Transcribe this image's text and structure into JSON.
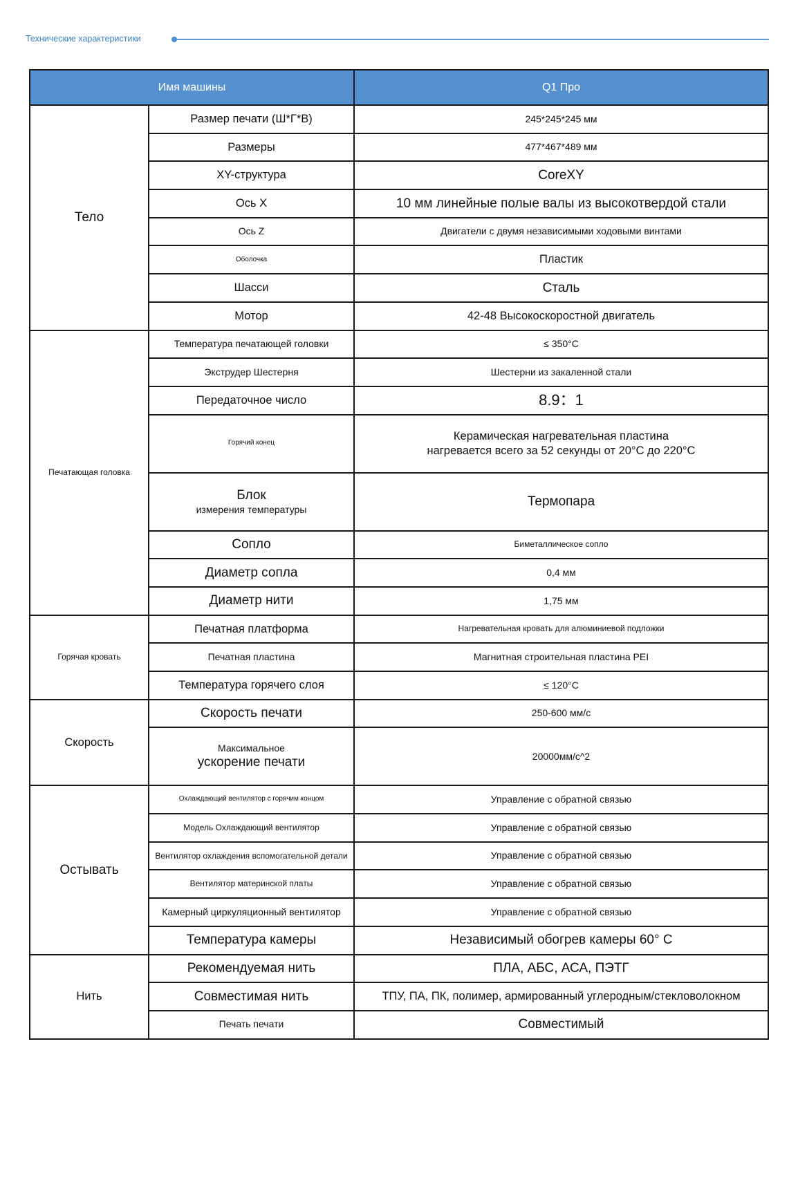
{
  "section_title": "Технические характеристики",
  "header": {
    "col_name": "Имя машины",
    "col_value": "Q1 Про"
  },
  "colors": {
    "accent": "#5590cf",
    "title": "#3b7fc0"
  },
  "groups": [
    {
      "label": "Тело",
      "rows": [
        {
          "param": [
            "Размер печати (Ш*Г*В)"
          ],
          "value": [
            "245*245*245 мм"
          ]
        },
        {
          "param": [
            "Размеры"
          ],
          "value": [
            "477*467*489 мм"
          ]
        },
        {
          "param": [
            "XY-структура"
          ],
          "value": [
            "CoreXY"
          ]
        },
        {
          "param": [
            "Ось X"
          ],
          "value": [
            "10 мм линейные полые валы из высокотвердой стали"
          ]
        },
        {
          "param": [
            "Ось Z"
          ],
          "value": [
            "Двигатели с двумя независимыми ходовыми винтами"
          ]
        },
        {
          "param": [
            "Оболочка"
          ],
          "value": [
            "Пластик"
          ]
        },
        {
          "param": [
            "Шасси"
          ],
          "value": [
            "Сталь"
          ]
        },
        {
          "param": [
            "Мотор"
          ],
          "value": [
            "42-48 Высокоскоростной двигатель"
          ]
        }
      ]
    },
    {
      "label": "Печатающая головка",
      "rows": [
        {
          "param": [
            "Температура печатающей головки"
          ],
          "value": [
            "≤ 350°C"
          ]
        },
        {
          "param": [
            "Экструдер Шестерня"
          ],
          "value": [
            "Шестерни из закаленной стали"
          ]
        },
        {
          "param": [
            "Передаточное число"
          ],
          "value": [
            "8.9：1"
          ]
        },
        {
          "param": [
            "Горячий конец"
          ],
          "value": [
            "Керамическая нагревательная пластина",
            "нагревается всего за 52 секунды от 20°C до 220°C"
          ]
        },
        {
          "param": [
            "Блок",
            "измерения температуры"
          ],
          "value": [
            "Термопара"
          ]
        },
        {
          "param": [
            "Сопло"
          ],
          "value": [
            "Биметаллическое сопло"
          ]
        },
        {
          "param": [
            "Диаметр сопла"
          ],
          "value": [
            "0,4 мм"
          ]
        },
        {
          "param": [
            "Диаметр нити"
          ],
          "value": [
            "1,75 мм"
          ]
        }
      ]
    },
    {
      "label": "Горячая кровать",
      "rows": [
        {
          "param": [
            "Печатная платформа"
          ],
          "value": [
            "Нагревательная кровать для алюминиевой подложки"
          ]
        },
        {
          "param": [
            "Печатная пластина"
          ],
          "value": [
            "Магнитная строительная пластина PEI"
          ]
        },
        {
          "param": [
            "Температура горячего слоя"
          ],
          "value": [
            "≤ 120°C"
          ]
        }
      ]
    },
    {
      "label": "Скорость",
      "rows": [
        {
          "param": [
            "Скорость печати"
          ],
          "value": [
            "250-600 мм/с"
          ]
        },
        {
          "param": [
            "Максимальное",
            "ускорение печати"
          ],
          "value": [
            "20000мм/с^2"
          ]
        }
      ]
    },
    {
      "label": "Остывать",
      "rows": [
        {
          "param": [
            "Охлаждающий вентилятор с горячим концом"
          ],
          "value": [
            "Управление с обратной связью"
          ]
        },
        {
          "param": [
            "Модель Охлаждающий вентилятор"
          ],
          "value": [
            "Управление с обратной связью"
          ]
        },
        {
          "param": [
            "Вентилятор охлаждения вспомогательной детали"
          ],
          "value": [
            "Управление с обратной связью"
          ]
        },
        {
          "param": [
            "Вентилятор материнской платы"
          ],
          "value": [
            "Управление с обратной связью"
          ]
        },
        {
          "param": [
            "Камерный циркуляционный вентилятор"
          ],
          "value": [
            "Управление с обратной связью"
          ]
        },
        {
          "param": [
            "Температура камеры"
          ],
          "value": [
            "Независимый обогрев камеры 60° C"
          ]
        }
      ]
    },
    {
      "label": "Нить",
      "rows": [
        {
          "param": [
            "Рекомендуемая нить"
          ],
          "value": [
            "ПЛА, АБС, АСА, ПЭТГ"
          ]
        },
        {
          "param": [
            "Совместимая нить"
          ],
          "value": [
            "ТПУ, ПА, ПК, полимер, армированный углеродным/стекловолокном"
          ]
        },
        {
          "param": [
            "Печать печати"
          ],
          "value": [
            "Совместимый"
          ]
        }
      ]
    }
  ]
}
